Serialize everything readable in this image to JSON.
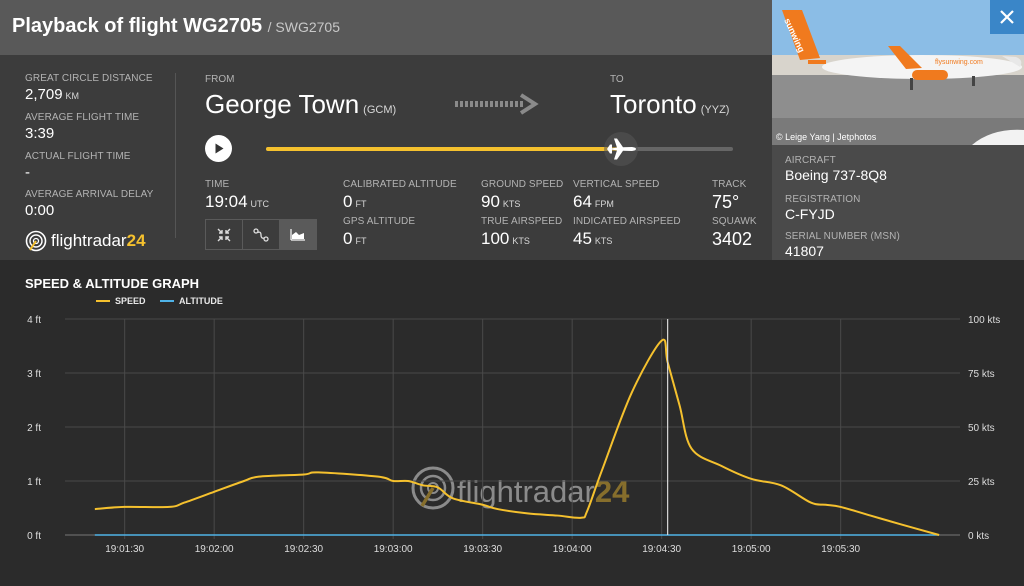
{
  "header": {
    "title": "Playback of flight WG2705",
    "subtitle": "/ SWG2705",
    "close_icon": "close-icon"
  },
  "stats": [
    {
      "label": "GREAT CIRCLE DISTANCE",
      "value": "2,709",
      "unit": "KM"
    },
    {
      "label": "AVERAGE FLIGHT TIME",
      "value": "3:39",
      "unit": ""
    },
    {
      "label": "ACTUAL FLIGHT TIME",
      "value": "-",
      "unit": ""
    },
    {
      "label": "AVERAGE ARRIVAL DELAY",
      "value": "0:00",
      "unit": ""
    }
  ],
  "route": {
    "from_label": "FROM",
    "from_city": "George Town",
    "from_code": "(GCM)",
    "to_label": "TO",
    "to_city": "Toronto",
    "to_code": "(YYZ)",
    "progress": 0.76
  },
  "metrics": {
    "time": {
      "label": "TIME",
      "value": "19:04",
      "unit": "UTC"
    },
    "cal_alt": {
      "label": "CALIBRATED ALTITUDE",
      "value": "0",
      "unit": "FT"
    },
    "gps_alt": {
      "label": "GPS ALTITUDE",
      "value": "0",
      "unit": "FT"
    },
    "ground_speed": {
      "label": "GROUND SPEED",
      "value": "90",
      "unit": "KTS"
    },
    "true_airspeed": {
      "label": "TRUE AIRSPEED",
      "value": "100",
      "unit": "KTS"
    },
    "vertical_speed": {
      "label": "VERTICAL SPEED",
      "value": "64",
      "unit": "FPM"
    },
    "indicated_airspeed": {
      "label": "INDICATED AIRSPEED",
      "value": "45",
      "unit": "KTS"
    },
    "track": {
      "label": "TRACK",
      "value": "75°"
    },
    "squawk": {
      "label": "SQUAWK",
      "value": "3402"
    }
  },
  "logo": {
    "text_main": "flightradar",
    "text_num": "24"
  },
  "photo": {
    "credit": "© Leige Yang | Jetphotos",
    "livery_text": "flysunwing.com",
    "tail_text": "sunwing"
  },
  "aircraft": {
    "aircraft_label": "AIRCRAFT",
    "aircraft_value": "Boeing 737-8Q8",
    "registration_label": "REGISTRATION",
    "registration_value": "C-FYJD",
    "msn_label": "SERIAL NUMBER (MSN)",
    "msn_value": "41807"
  },
  "colors": {
    "speed": "#f5c12e",
    "altitude": "#4fb3e8",
    "accent": "#3a86c8"
  },
  "chart_data": {
    "type": "line",
    "title": "SPEED & ALTITUDE GRAPH",
    "x": [
      "19:01:20",
      "19:01:30",
      "19:01:45",
      "19:01:50",
      "19:02:00",
      "19:02:10",
      "19:02:15",
      "19:02:30",
      "19:02:35",
      "19:02:55",
      "19:03:00",
      "19:03:05",
      "19:03:10",
      "19:03:15",
      "19:03:20",
      "19:03:30",
      "19:03:35",
      "19:03:45",
      "19:03:55",
      "19:04:03",
      "19:04:05",
      "19:04:10",
      "19:04:20",
      "19:04:30",
      "19:04:32",
      "19:04:36",
      "19:04:40",
      "19:04:50",
      "19:05:00",
      "19:05:10",
      "19:05:20",
      "19:05:25",
      "19:05:30",
      "19:05:40",
      "19:05:50",
      "19:06:03"
    ],
    "series": [
      {
        "name": "SPEED",
        "axis": "right",
        "unit": "kts",
        "values": [
          12,
          13,
          13,
          15,
          20,
          25,
          27,
          28,
          29,
          27,
          25,
          25,
          23,
          22,
          17,
          14,
          12,
          10,
          9,
          8,
          11,
          30,
          66,
          90,
          80,
          60,
          40,
          32,
          26,
          23,
          15,
          14,
          13,
          9,
          5,
          0
        ]
      },
      {
        "name": "ALTITUDE",
        "axis": "left",
        "unit": "ft",
        "values": [
          0,
          0,
          0,
          0,
          0,
          0,
          0,
          0,
          0,
          0,
          0,
          0,
          0,
          0,
          0,
          0,
          0,
          0,
          0,
          0,
          0,
          0,
          0,
          0,
          0,
          0,
          0,
          0,
          0,
          0,
          0,
          0,
          0,
          0,
          0,
          0
        ]
      }
    ],
    "xticks": [
      "19:01:30",
      "19:02:00",
      "19:02:30",
      "19:03:00",
      "19:03:30",
      "19:04:00",
      "19:04:30",
      "19:05:00",
      "19:05:30"
    ],
    "yleft_ticks": [
      "0 ft",
      "1 ft",
      "2 ft",
      "3 ft",
      "4 ft"
    ],
    "yright_ticks": [
      "0 kts",
      "25 kts",
      "50 kts",
      "75 kts",
      "100 kts"
    ],
    "yleft_range": [
      0,
      4
    ],
    "yright_range": [
      0,
      100
    ],
    "cursor_x": "19:04:32",
    "grid": true,
    "legend": "top-left"
  }
}
